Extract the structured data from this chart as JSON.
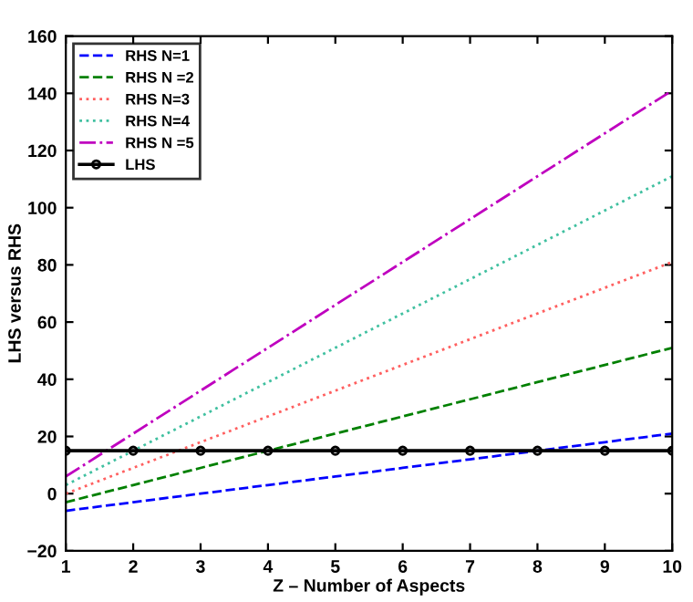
{
  "chart_data": {
    "type": "line",
    "xlabel": "Z – Number of Aspects",
    "ylabel": "LHS versus RHS",
    "x": [
      1,
      2,
      3,
      4,
      5,
      6,
      7,
      8,
      9,
      10
    ],
    "series": [
      {
        "name": "RHS N=1",
        "color": "#0000ff",
        "line_style": "dashed",
        "marker": "none",
        "values": [
          -6,
          -3,
          0,
          3,
          6,
          9,
          12,
          15,
          18,
          21
        ]
      },
      {
        "name": "RHS N =2",
        "color": "#008000",
        "line_style": "dashed",
        "marker": "none",
        "values": [
          -3,
          3,
          9,
          15,
          21,
          27,
          33,
          39,
          45,
          51
        ]
      },
      {
        "name": "RHS N=3",
        "color": "#ff6060",
        "line_style": "dotted",
        "marker": "none",
        "values": [
          0,
          9,
          18,
          27,
          36,
          45,
          54,
          63,
          72,
          81
        ]
      },
      {
        "name": "RHS N=4",
        "color": "#40c0a0",
        "line_style": "dotted",
        "marker": "none",
        "values": [
          3,
          15,
          27,
          39,
          51,
          63,
          75,
          87,
          99,
          111
        ]
      },
      {
        "name": "RHS N =5",
        "color": "#bf00bf",
        "line_style": "dashdot",
        "marker": "none",
        "values": [
          6,
          21,
          36,
          51,
          66,
          81,
          96,
          111,
          126,
          141
        ]
      },
      {
        "name": "LHS",
        "color": "#000000",
        "line_style": "solid",
        "marker": "circle",
        "values": [
          15,
          15,
          15,
          15,
          15,
          15,
          15,
          15,
          15,
          15
        ]
      }
    ],
    "xlim": [
      1,
      10
    ],
    "xticks": [
      1,
      2,
      3,
      4,
      5,
      6,
      7,
      8,
      9,
      10
    ],
    "ylim": [
      -20,
      160
    ],
    "yticks": [
      -20,
      0,
      20,
      40,
      60,
      80,
      100,
      120,
      140,
      160
    ],
    "legend": "top left"
  }
}
